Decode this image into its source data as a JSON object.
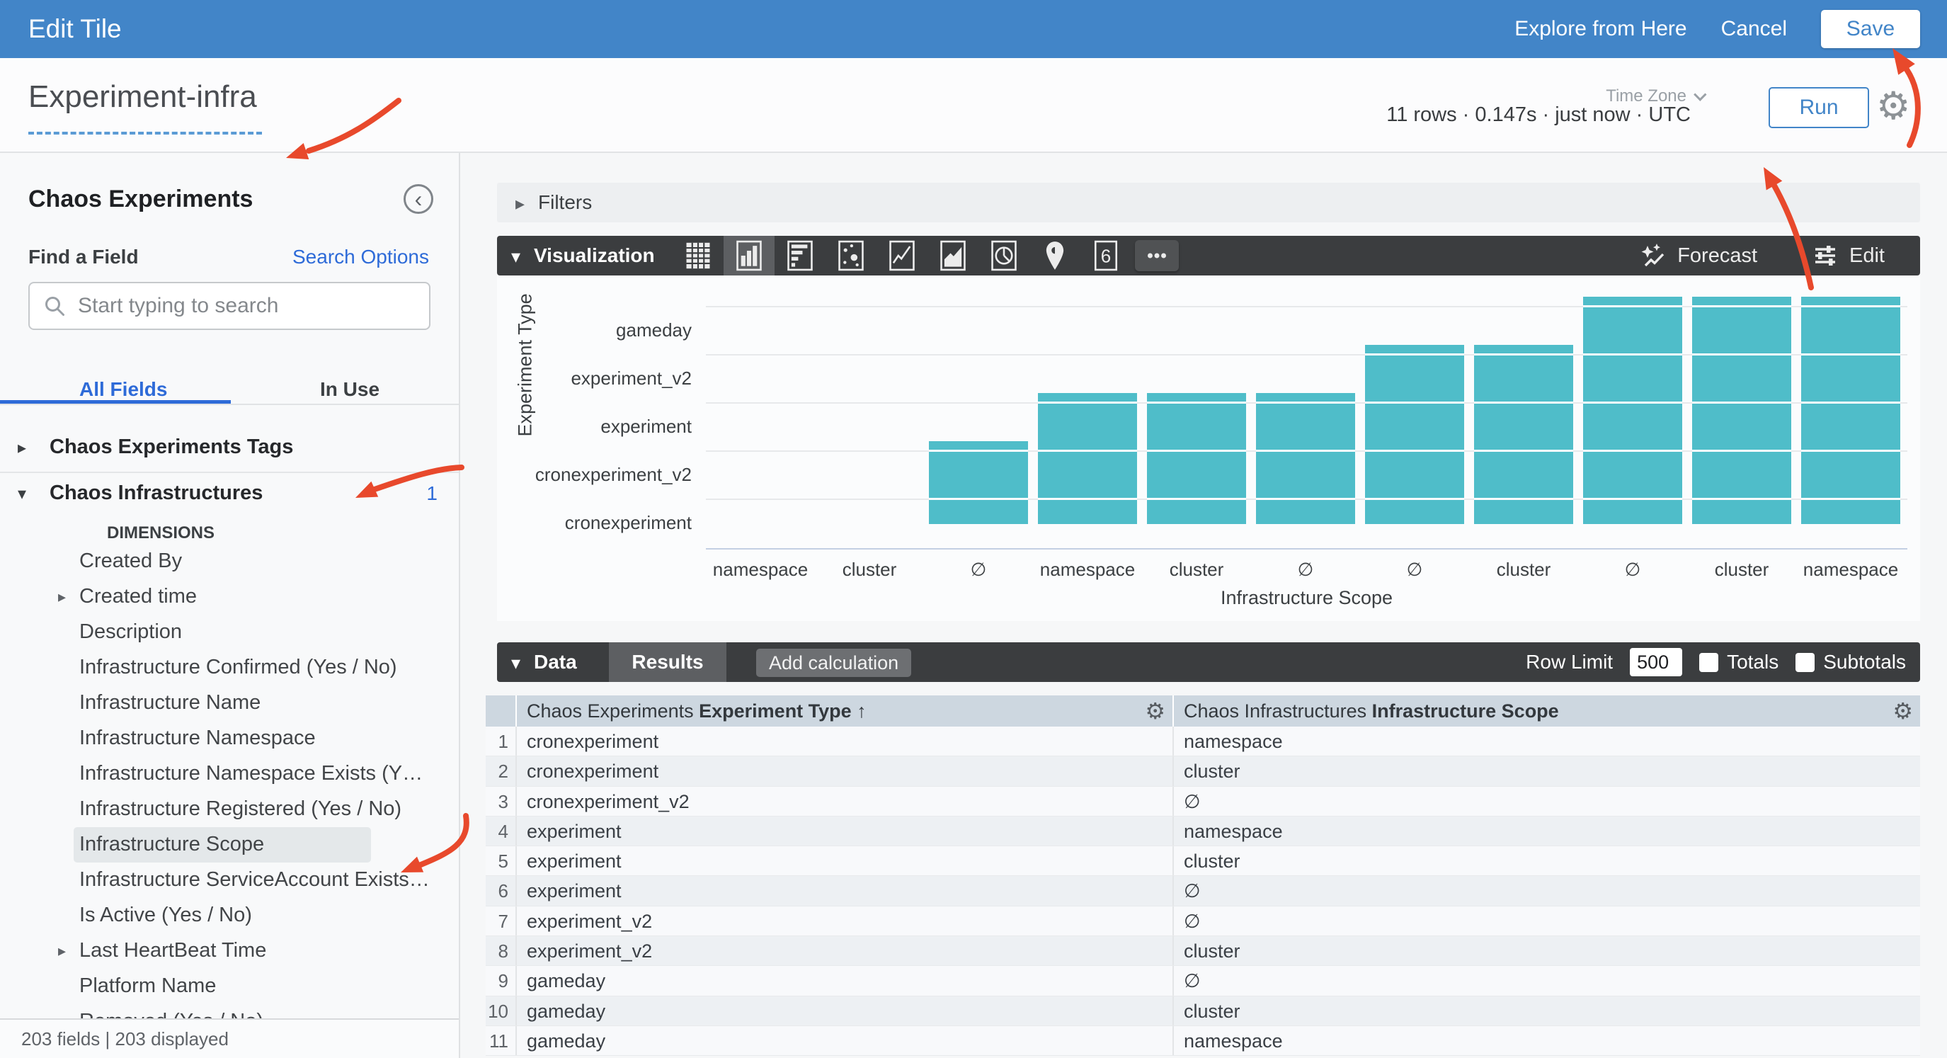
{
  "topbar": {
    "title": "Edit Tile",
    "explore_label": "Explore from Here",
    "cancel_label": "Cancel",
    "save_label": "Save"
  },
  "header": {
    "tile_name": "Experiment-infra",
    "stats": "11 rows · 0.147s · just now · UTC",
    "time_zone_label": "Time Zone",
    "run_label": "Run"
  },
  "sidebar": {
    "view_title": "Chaos Experiments",
    "find_a_field_label": "Find a Field",
    "search_options_label": "Search Options",
    "search_placeholder": "Start typing to search",
    "tabs": {
      "all_fields": "All Fields",
      "in_use": "In Use"
    },
    "items": [
      {
        "type": "group",
        "label": "Chaos Experiments Tags",
        "caret": "collapsed"
      },
      {
        "type": "divider"
      },
      {
        "type": "group",
        "label": "Chaos Infrastructures",
        "caret": "expanded",
        "count": "1"
      },
      {
        "type": "heading",
        "label": "DIMENSIONS"
      },
      {
        "type": "field",
        "label": "Created By"
      },
      {
        "type": "field",
        "label": "Created time",
        "caret": "collapsed"
      },
      {
        "type": "field",
        "label": "Description"
      },
      {
        "type": "field",
        "label": "Infrastructure Confirmed (Yes / No)"
      },
      {
        "type": "field",
        "label": "Infrastructure Name"
      },
      {
        "type": "field",
        "label": "Infrastructure Namespace"
      },
      {
        "type": "field",
        "label": "Infrastructure Namespace Exists (Y…"
      },
      {
        "type": "field",
        "label": "Infrastructure Registered (Yes / No)"
      },
      {
        "type": "field",
        "label": "Infrastructure Scope",
        "highlighted": true
      },
      {
        "type": "field",
        "label": "Infrastructure ServiceAccount Exists…"
      },
      {
        "type": "field",
        "label": "Is Active (Yes / No)"
      },
      {
        "type": "field",
        "label": "Last HeartBeat Time",
        "caret": "collapsed"
      },
      {
        "type": "field",
        "label": "Platform Name"
      },
      {
        "type": "field",
        "label": "Removed (Yes / No)",
        "clipped": true
      }
    ],
    "footer": "203 fields | 203 displayed"
  },
  "filters": {
    "label": "Filters"
  },
  "visualization": {
    "label": "Visualization",
    "icons": [
      {
        "name": "table-icon"
      },
      {
        "name": "column-chart-icon",
        "selected": true
      },
      {
        "name": "bar-chart-icon"
      },
      {
        "name": "scatter-icon"
      },
      {
        "name": "line-chart-icon"
      },
      {
        "name": "area-chart-icon"
      },
      {
        "name": "pie-chart-icon"
      },
      {
        "name": "map-pin-icon"
      },
      {
        "name": "single-value-icon"
      },
      {
        "name": "more-icon"
      }
    ],
    "forecast_label": "Forecast",
    "edit_label": "Edit"
  },
  "chart_data": {
    "type": "bar",
    "title": "",
    "xlabel": "Infrastructure Scope",
    "ylabel": "Experiment Type",
    "y_categories_bottom_to_top": [
      "cronexperiment",
      "cronexperiment_v2",
      "experiment",
      "experiment_v2",
      "gameday"
    ],
    "bar_color": "#4fbdc9",
    "grid": true,
    "columns": [
      {
        "x": "namespace",
        "y": "cronexperiment"
      },
      {
        "x": "cluster",
        "y": "cronexperiment"
      },
      {
        "x": "∅",
        "y": "cronexperiment_v2"
      },
      {
        "x": "namespace",
        "y": "experiment"
      },
      {
        "x": "cluster",
        "y": "experiment"
      },
      {
        "x": "∅",
        "y": "experiment"
      },
      {
        "x": "∅",
        "y": "experiment_v2"
      },
      {
        "x": "cluster",
        "y": "experiment_v2"
      },
      {
        "x": "∅",
        "y": "gameday"
      },
      {
        "x": "cluster",
        "y": "gameday"
      },
      {
        "x": "namespace",
        "y": "gameday"
      }
    ]
  },
  "data_section": {
    "label": "Data",
    "results_tab": "Results",
    "add_calculation": "Add calculation",
    "row_limit_label": "Row Limit",
    "row_limit_value": "500",
    "totals_label": "Totals",
    "subtotals_label": "Subtotals"
  },
  "table": {
    "col1": {
      "model": "Chaos Experiments",
      "field": "Experiment Type",
      "sort_arrow": "↑"
    },
    "col2": {
      "model": "Chaos Infrastructures",
      "field": "Infrastructure Scope"
    },
    "rows": [
      {
        "num": "1",
        "experiment_type": "cronexperiment",
        "infrastructure_scope": "namespace"
      },
      {
        "num": "2",
        "experiment_type": "cronexperiment",
        "infrastructure_scope": "cluster"
      },
      {
        "num": "3",
        "experiment_type": "cronexperiment_v2",
        "infrastructure_scope": "∅"
      },
      {
        "num": "4",
        "experiment_type": "experiment",
        "infrastructure_scope": "namespace"
      },
      {
        "num": "5",
        "experiment_type": "experiment",
        "infrastructure_scope": "cluster"
      },
      {
        "num": "6",
        "experiment_type": "experiment",
        "infrastructure_scope": "∅"
      },
      {
        "num": "7",
        "experiment_type": "experiment_v2",
        "infrastructure_scope": "∅"
      },
      {
        "num": "8",
        "experiment_type": "experiment_v2",
        "infrastructure_scope": "cluster"
      },
      {
        "num": "9",
        "experiment_type": "gameday",
        "infrastructure_scope": "∅"
      },
      {
        "num": "10",
        "experiment_type": "gameday",
        "infrastructure_scope": "cluster"
      },
      {
        "num": "11",
        "experiment_type": "gameday",
        "infrastructure_scope": "namespace"
      }
    ]
  },
  "annotation_arrows": [
    "tile-name",
    "save-button",
    "run-button",
    "chaos-infrastructures-group",
    "infrastructure-scope-field"
  ],
  "colors": {
    "topbar_blue": "#4285c8",
    "accent_blue": "#2e6bd8",
    "bar_teal": "#4fbdc9",
    "dark_bar": "#3b3d3f",
    "table_header_bg": "#cdd7e0",
    "annotation_red": "#e8492c"
  }
}
